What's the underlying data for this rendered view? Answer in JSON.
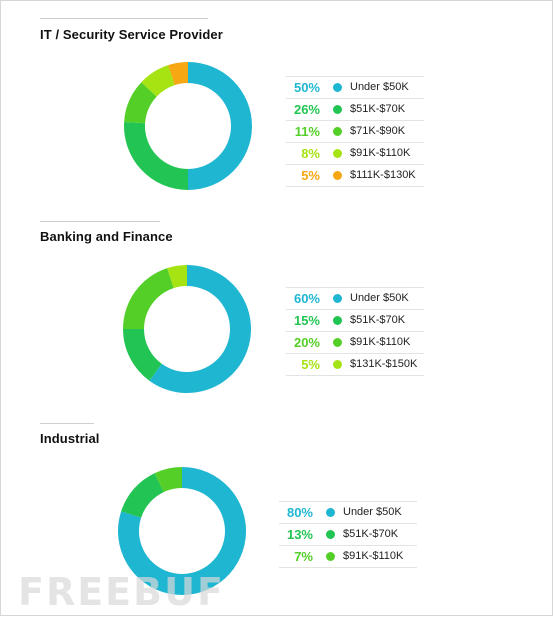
{
  "watermark": "FREEBUF",
  "chart_data": [
    {
      "type": "pie",
      "title": "IT / Security Service Provider",
      "categories": [
        "Under $50K",
        "$51K-$70K",
        "$71K-$90K",
        "$91K-$110K",
        "$111K-$130K"
      ],
      "values": [
        50,
        26,
        11,
        8,
        5
      ],
      "labels": [
        "50%",
        "26%",
        "11%",
        "8%",
        "5%"
      ],
      "colors": [
        "#1fb6d1",
        "#22c553",
        "#54cf28",
        "#a6e313",
        "#f7a712"
      ],
      "donut": true
    },
    {
      "type": "pie",
      "title": "Banking and Finance",
      "categories": [
        "Under $50K",
        "$51K-$70K",
        "$91K-$110K",
        "$131K-$150K"
      ],
      "values": [
        60,
        15,
        20,
        5
      ],
      "labels": [
        "60%",
        "15%",
        "20%",
        "5%"
      ],
      "colors": [
        "#1fb6d1",
        "#22c553",
        "#54cf28",
        "#a6e313"
      ],
      "donut": true
    },
    {
      "type": "pie",
      "title": "Industrial",
      "categories": [
        "Under $50K",
        "$51K-$70K",
        "$91K-$110K"
      ],
      "values": [
        80,
        13,
        7
      ],
      "labels": [
        "80%",
        "13%",
        "7%"
      ],
      "colors": [
        "#1fb6d1",
        "#22c553",
        "#54cf28"
      ],
      "donut": true
    }
  ]
}
